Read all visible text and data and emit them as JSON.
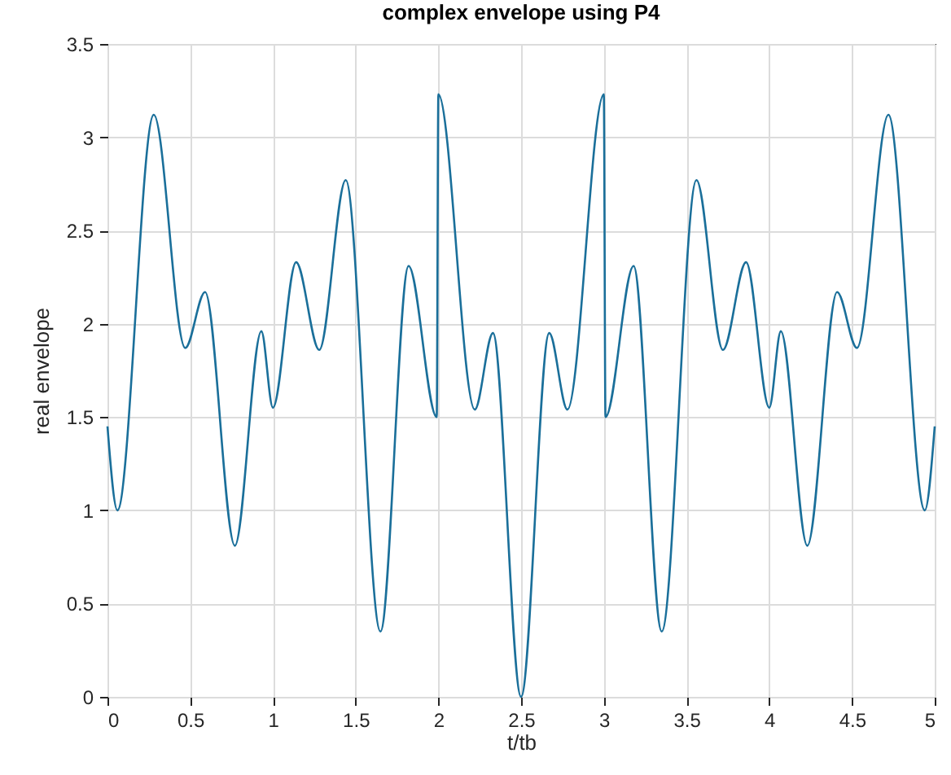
{
  "chart_data": {
    "type": "line",
    "title": "complex envelope using P4",
    "xlabel": "t/tb",
    "ylabel": "real envelope",
    "x": [
      0,
      0.06,
      0.28,
      0.47,
      0.59,
      0.77,
      0.93,
      1.0,
      1.14,
      1.28,
      1.44,
      1.65,
      1.82,
      1.99,
      2.0,
      2.22,
      2.33,
      2.5,
      2.67,
      2.78,
      3.0,
      3.01,
      3.18,
      3.35,
      3.56,
      3.72,
      3.86,
      4.0,
      4.07,
      4.23,
      4.41,
      4.53,
      4.72,
      4.94,
      5.0
    ],
    "series": [
      {
        "color": "#1a6f9a",
        "values": [
          1.45,
          1.0,
          3.12,
          1.87,
          2.17,
          0.81,
          1.96,
          1.55,
          2.33,
          1.86,
          2.77,
          0.35,
          2.31,
          1.5,
          3.23,
          1.54,
          1.95,
          0,
          1.95,
          1.54,
          3.23,
          1.5,
          2.31,
          0.35,
          2.77,
          1.86,
          2.33,
          1.55,
          1.96,
          0.81,
          2.17,
          1.87,
          3.12,
          1.0,
          1.45
        ]
      }
    ],
    "xlim": [
      0,
      5
    ],
    "xticks": [
      0,
      0.5,
      1,
      1.5,
      2,
      2.5,
      3,
      3.5,
      4,
      4.5,
      5
    ],
    "ylim": [
      0,
      3.5
    ],
    "yticks": [
      0,
      0.5,
      1,
      1.5,
      2,
      2.5,
      3,
      3.5
    ],
    "grid": true,
    "marker": "none",
    "line_style": "solid"
  }
}
